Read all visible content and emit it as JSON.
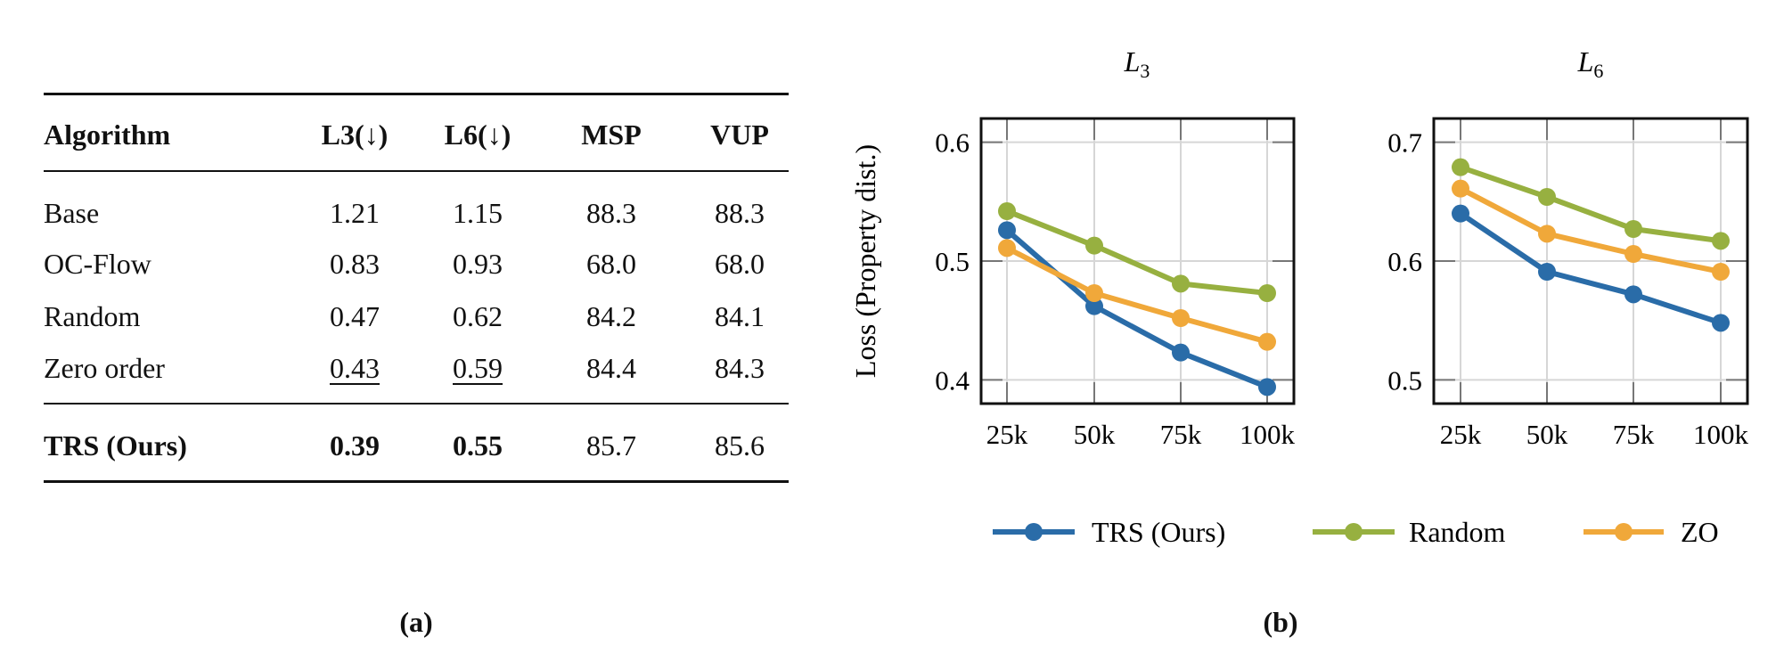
{
  "table": {
    "columns": [
      "Algorithm",
      "L3(↓)",
      "L6(↓)",
      "MSP",
      "VUP"
    ],
    "rows": [
      {
        "algorithm": "Base",
        "l3": "1.21",
        "l6": "1.15",
        "msp": "88.3",
        "vup": "88.3"
      },
      {
        "algorithm": "OC-Flow",
        "l3": "0.83",
        "l6": "0.93",
        "msp": "68.0",
        "vup": "68.0"
      },
      {
        "algorithm": "Random",
        "l3": "0.47",
        "l6": "0.62",
        "msp": "84.2",
        "vup": "84.1"
      },
      {
        "algorithm": "Zero order",
        "l3": "0.43",
        "l6": "0.59",
        "msp": "84.4",
        "vup": "84.3",
        "underlined": [
          "l3",
          "l6"
        ]
      },
      {
        "algorithm": "TRS (Ours)",
        "l3": "0.39",
        "l6": "0.55",
        "msp": "85.7",
        "vup": "85.6",
        "bold": [
          "algorithm",
          "l3",
          "l6"
        ]
      }
    ],
    "caption": "(a)"
  },
  "figure_caption": "(b)",
  "chart_data": [
    {
      "type": "line",
      "title": "L3",
      "ylabel": "Loss (Property dist.)",
      "x": [
        "25k",
        "50k",
        "75k",
        "100k"
      ],
      "yticks": [
        "0.4",
        "0.5",
        "0.6"
      ],
      "ylim": [
        0.38,
        0.62
      ],
      "grid": true,
      "legend": "bottom",
      "series": [
        {
          "name": "TRS (Ours)",
          "color": "#2a6ca8",
          "values": [
            0.526,
            0.462,
            0.423,
            0.394
          ]
        },
        {
          "name": "Random",
          "color": "#97b040",
          "values": [
            0.542,
            0.513,
            0.481,
            0.473
          ]
        },
        {
          "name": "ZO",
          "color": "#f0a83a",
          "values": [
            0.511,
            0.473,
            0.452,
            0.432
          ]
        }
      ]
    },
    {
      "type": "line",
      "title": "L6",
      "x": [
        "25k",
        "50k",
        "75k",
        "100k"
      ],
      "yticks": [
        "0.5",
        "0.6",
        "0.7"
      ],
      "ylim": [
        0.48,
        0.72
      ],
      "grid": true,
      "series": [
        {
          "name": "TRS (Ours)",
          "color": "#2a6ca8",
          "values": [
            0.64,
            0.591,
            0.572,
            0.548
          ]
        },
        {
          "name": "Random",
          "color": "#97b040",
          "values": [
            0.679,
            0.654,
            0.627,
            0.617
          ]
        },
        {
          "name": "ZO",
          "color": "#f0a83a",
          "values": [
            0.661,
            0.623,
            0.606,
            0.591
          ]
        }
      ]
    }
  ]
}
